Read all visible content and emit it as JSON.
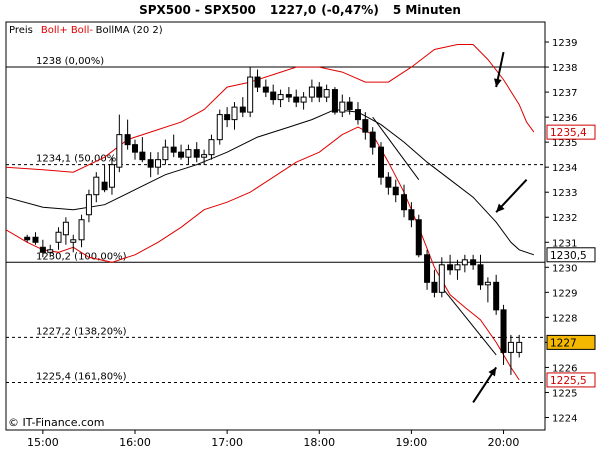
{
  "chart_data": {
    "type": "candlestick",
    "title": "SPX500 - SPX500",
    "last_price": "1227,0",
    "change": "(-0,47%)",
    "interval": "5 Minuten",
    "legend": {
      "price_label": "Preis",
      "indicator_upper": "Boll+",
      "indicator_lower": "Boll-",
      "indicator_ma": "BollMA",
      "indicator_params": "(20 2)"
    },
    "copyright": "© IT-Finance.com",
    "colors": {
      "bollinger_bands": "#e00000",
      "moving_average": "#000000",
      "down_candle": "#000000",
      "up_candle": "#ffffff",
      "last_price_tag": "#f5b800",
      "band_tag_text": "#d00000"
    },
    "y_range": [
      1223.5,
      1239.8
    ],
    "y_ticks": [
      1224,
      1225,
      1226,
      1227,
      1228,
      1229,
      1230,
      1231,
      1232,
      1233,
      1234,
      1235,
      1236,
      1237,
      1238,
      1239
    ],
    "x_range": [
      14.6,
      20.45
    ],
    "x_ticks": [
      {
        "t": 15.0,
        "label": "15:00"
      },
      {
        "t": 16.0,
        "label": "16:00"
      },
      {
        "t": 17.0,
        "label": "17:00"
      },
      {
        "t": 18.0,
        "label": "18:00"
      },
      {
        "t": 19.0,
        "label": "19:00"
      },
      {
        "t": 20.0,
        "label": "20:00"
      }
    ],
    "right_tags": [
      {
        "value": 1235.4,
        "label": "1235,4",
        "style": "red"
      },
      {
        "value": 1230.5,
        "label": "1230,5",
        "style": "black"
      },
      {
        "value": 1227.0,
        "label": "1227",
        "style": "highlight"
      },
      {
        "value": 1225.5,
        "label": "1225,5",
        "style": "red"
      }
    ],
    "fib_levels": [
      {
        "value": 1238.0,
        "label": "1238 (0,00%)",
        "line": "solid"
      },
      {
        "value": 1234.1,
        "label": "1234,1 (50,00%)",
        "line": "dashed"
      },
      {
        "value": 1230.2,
        "label": "1230,2 (100,00%)",
        "line": "solid"
      },
      {
        "value": 1227.2,
        "label": "1227,2 (138,20%)",
        "line": "dashed"
      },
      {
        "value": 1225.4,
        "label": "1225,4 (161,80%)",
        "line": "dashed"
      }
    ],
    "candles": [
      {
        "t": 14.83,
        "o": 1231.2,
        "h": 1231.3,
        "l": 1231.0,
        "c": 1231.1
      },
      {
        "t": 14.92,
        "o": 1231.2,
        "h": 1231.4,
        "l": 1230.9,
        "c": 1231.0
      },
      {
        "t": 15.0,
        "o": 1230.8,
        "h": 1231.1,
        "l": 1230.4,
        "c": 1230.6
      },
      {
        "t": 15.08,
        "o": 1230.6,
        "h": 1230.9,
        "l": 1230.4,
        "c": 1230.7
      },
      {
        "t": 15.17,
        "o": 1231.0,
        "h": 1231.6,
        "l": 1230.7,
        "c": 1231.4
      },
      {
        "t": 15.25,
        "o": 1231.3,
        "h": 1232.0,
        "l": 1230.9,
        "c": 1231.8
      },
      {
        "t": 15.33,
        "o": 1231.0,
        "h": 1231.3,
        "l": 1230.6,
        "c": 1231.1
      },
      {
        "t": 15.42,
        "o": 1231.1,
        "h": 1232.1,
        "l": 1230.8,
        "c": 1231.9
      },
      {
        "t": 15.5,
        "o": 1232.1,
        "h": 1233.1,
        "l": 1231.8,
        "c": 1232.9
      },
      {
        "t": 15.58,
        "o": 1232.9,
        "h": 1233.8,
        "l": 1232.6,
        "c": 1233.6
      },
      {
        "t": 15.67,
        "o": 1233.4,
        "h": 1234.1,
        "l": 1233.0,
        "c": 1233.1
      },
      {
        "t": 15.75,
        "o": 1233.2,
        "h": 1234.4,
        "l": 1232.9,
        "c": 1234.1
      },
      {
        "t": 15.83,
        "o": 1234.0,
        "h": 1236.1,
        "l": 1233.8,
        "c": 1235.3
      },
      {
        "t": 15.92,
        "o": 1235.3,
        "h": 1235.9,
        "l": 1234.7,
        "c": 1234.9
      },
      {
        "t": 16.0,
        "o": 1234.9,
        "h": 1235.1,
        "l": 1234.3,
        "c": 1234.6
      },
      {
        "t": 16.08,
        "o": 1234.6,
        "h": 1235.2,
        "l": 1234.2,
        "c": 1234.3
      },
      {
        "t": 16.17,
        "o": 1234.3,
        "h": 1234.6,
        "l": 1233.6,
        "c": 1234.0
      },
      {
        "t": 16.25,
        "o": 1234.0,
        "h": 1234.6,
        "l": 1233.7,
        "c": 1234.3
      },
      {
        "t": 16.33,
        "o": 1234.3,
        "h": 1235.1,
        "l": 1234.1,
        "c": 1234.8
      },
      {
        "t": 16.42,
        "o": 1234.8,
        "h": 1235.3,
        "l": 1234.4,
        "c": 1234.6
      },
      {
        "t": 16.5,
        "o": 1234.6,
        "h": 1234.9,
        "l": 1234.3,
        "c": 1234.4
      },
      {
        "t": 16.58,
        "o": 1234.4,
        "h": 1234.9,
        "l": 1234.1,
        "c": 1234.7
      },
      {
        "t": 16.67,
        "o": 1234.7,
        "h": 1235.0,
        "l": 1234.2,
        "c": 1234.4
      },
      {
        "t": 16.75,
        "o": 1234.4,
        "h": 1234.7,
        "l": 1234.1,
        "c": 1234.5
      },
      {
        "t": 16.83,
        "o": 1234.5,
        "h": 1235.3,
        "l": 1234.3,
        "c": 1235.1
      },
      {
        "t": 16.92,
        "o": 1235.1,
        "h": 1236.3,
        "l": 1234.9,
        "c": 1236.1
      },
      {
        "t": 17.0,
        "o": 1236.1,
        "h": 1236.4,
        "l": 1235.6,
        "c": 1235.9
      },
      {
        "t": 17.08,
        "o": 1235.9,
        "h": 1236.6,
        "l": 1235.5,
        "c": 1236.4
      },
      {
        "t": 17.17,
        "o": 1236.4,
        "h": 1236.8,
        "l": 1236.0,
        "c": 1236.2
      },
      {
        "t": 17.25,
        "o": 1236.2,
        "h": 1238.0,
        "l": 1236.0,
        "c": 1237.6
      },
      {
        "t": 17.33,
        "o": 1237.6,
        "h": 1237.9,
        "l": 1237.0,
        "c": 1237.2
      },
      {
        "t": 17.42,
        "o": 1237.2,
        "h": 1237.5,
        "l": 1236.8,
        "c": 1237.0
      },
      {
        "t": 17.5,
        "o": 1237.0,
        "h": 1237.3,
        "l": 1236.5,
        "c": 1236.7
      },
      {
        "t": 17.58,
        "o": 1236.7,
        "h": 1237.1,
        "l": 1236.4,
        "c": 1236.9
      },
      {
        "t": 17.67,
        "o": 1236.9,
        "h": 1237.2,
        "l": 1236.6,
        "c": 1236.8
      },
      {
        "t": 17.75,
        "o": 1236.8,
        "h": 1237.1,
        "l": 1236.4,
        "c": 1236.6
      },
      {
        "t": 17.83,
        "o": 1236.6,
        "h": 1237.0,
        "l": 1236.3,
        "c": 1236.8
      },
      {
        "t": 17.92,
        "o": 1236.8,
        "h": 1237.5,
        "l": 1236.6,
        "c": 1237.2
      },
      {
        "t": 18.0,
        "o": 1237.2,
        "h": 1237.4,
        "l": 1236.6,
        "c": 1236.8
      },
      {
        "t": 18.08,
        "o": 1236.8,
        "h": 1237.3,
        "l": 1236.6,
        "c": 1237.1
      },
      {
        "t": 18.17,
        "o": 1237.1,
        "h": 1237.2,
        "l": 1236.1,
        "c": 1236.2
      },
      {
        "t": 18.25,
        "o": 1236.2,
        "h": 1236.9,
        "l": 1236.0,
        "c": 1236.6
      },
      {
        "t": 18.33,
        "o": 1236.6,
        "h": 1236.8,
        "l": 1236.1,
        "c": 1236.3
      },
      {
        "t": 18.42,
        "o": 1236.3,
        "h": 1236.6,
        "l": 1235.7,
        "c": 1235.9
      },
      {
        "t": 18.5,
        "o": 1235.9,
        "h": 1236.2,
        "l": 1235.1,
        "c": 1235.4
      },
      {
        "t": 18.58,
        "o": 1235.4,
        "h": 1235.6,
        "l": 1234.5,
        "c": 1234.8
      },
      {
        "t": 18.67,
        "o": 1234.8,
        "h": 1235.0,
        "l": 1233.3,
        "c": 1233.6
      },
      {
        "t": 18.75,
        "o": 1233.6,
        "h": 1233.8,
        "l": 1232.9,
        "c": 1233.2
      },
      {
        "t": 18.83,
        "o": 1233.2,
        "h": 1233.5,
        "l": 1232.6,
        "c": 1232.9
      },
      {
        "t": 18.92,
        "o": 1232.9,
        "h": 1233.3,
        "l": 1232.0,
        "c": 1232.3
      },
      {
        "t": 19.0,
        "o": 1232.3,
        "h": 1232.6,
        "l": 1231.6,
        "c": 1231.9
      },
      {
        "t": 19.08,
        "o": 1231.9,
        "h": 1232.1,
        "l": 1230.4,
        "c": 1230.5
      },
      {
        "t": 19.17,
        "o": 1230.5,
        "h": 1230.7,
        "l": 1229.1,
        "c": 1229.4
      },
      {
        "t": 19.25,
        "o": 1229.4,
        "h": 1229.9,
        "l": 1228.8,
        "c": 1229.0
      },
      {
        "t": 19.33,
        "o": 1229.0,
        "h": 1230.4,
        "l": 1228.8,
        "c": 1230.1
      },
      {
        "t": 19.42,
        "o": 1230.1,
        "h": 1230.5,
        "l": 1229.7,
        "c": 1229.9
      },
      {
        "t": 19.5,
        "o": 1229.9,
        "h": 1230.3,
        "l": 1229.5,
        "c": 1230.1
      },
      {
        "t": 19.58,
        "o": 1230.1,
        "h": 1230.5,
        "l": 1229.8,
        "c": 1230.3
      },
      {
        "t": 19.67,
        "o": 1230.3,
        "h": 1230.5,
        "l": 1229.9,
        "c": 1230.1
      },
      {
        "t": 19.75,
        "o": 1230.1,
        "h": 1230.5,
        "l": 1229.1,
        "c": 1229.3
      },
      {
        "t": 19.83,
        "o": 1229.3,
        "h": 1229.6,
        "l": 1228.6,
        "c": 1229.4
      },
      {
        "t": 19.92,
        "o": 1229.4,
        "h": 1229.7,
        "l": 1228.1,
        "c": 1228.3
      },
      {
        "t": 20.0,
        "o": 1228.3,
        "h": 1228.5,
        "l": 1226.1,
        "c": 1226.6
      },
      {
        "t": 20.08,
        "o": 1226.6,
        "h": 1227.3,
        "l": 1225.7,
        "c": 1227.0
      },
      {
        "t": 20.17,
        "o": 1226.6,
        "h": 1227.3,
        "l": 1226.4,
        "c": 1227.0
      }
    ],
    "boll_upper": [
      [
        14.6,
        1234.0
      ],
      [
        15.0,
        1233.9
      ],
      [
        15.33,
        1233.8
      ],
      [
        15.67,
        1234.4
      ],
      [
        15.92,
        1235.1
      ],
      [
        16.25,
        1235.5
      ],
      [
        16.5,
        1235.8
      ],
      [
        16.75,
        1236.3
      ],
      [
        17.0,
        1237.2
      ],
      [
        17.25,
        1237.4
      ],
      [
        17.5,
        1237.7
      ],
      [
        17.75,
        1238.0
      ],
      [
        18.0,
        1238.0
      ],
      [
        18.25,
        1237.8
      ],
      [
        18.5,
        1237.4
      ],
      [
        18.75,
        1237.4
      ],
      [
        19.0,
        1238.0
      ],
      [
        19.25,
        1238.7
      ],
      [
        19.5,
        1238.9
      ],
      [
        19.67,
        1238.9
      ],
      [
        19.83,
        1238.3
      ],
      [
        20.0,
        1237.5
      ],
      [
        20.17,
        1236.5
      ],
      [
        20.25,
        1235.8
      ],
      [
        20.33,
        1235.4
      ]
    ],
    "boll_lower": [
      [
        14.6,
        1231.5
      ],
      [
        14.83,
        1231.0
      ],
      [
        15.0,
        1230.7
      ],
      [
        15.17,
        1230.6
      ],
      [
        15.33,
        1230.8
      ],
      [
        15.5,
        1230.4
      ],
      [
        15.75,
        1230.2
      ],
      [
        16.0,
        1230.5
      ],
      [
        16.25,
        1231.0
      ],
      [
        16.5,
        1231.6
      ],
      [
        16.75,
        1232.3
      ],
      [
        17.0,
        1232.6
      ],
      [
        17.25,
        1233.0
      ],
      [
        17.5,
        1233.6
      ],
      [
        17.75,
        1234.2
      ],
      [
        18.0,
        1234.6
      ],
      [
        18.25,
        1235.3
      ],
      [
        18.42,
        1235.6
      ],
      [
        18.58,
        1235.3
      ],
      [
        18.75,
        1234.2
      ],
      [
        18.92,
        1233.0
      ],
      [
        19.08,
        1231.6
      ],
      [
        19.25,
        1230.0
      ],
      [
        19.42,
        1228.9
      ],
      [
        19.58,
        1228.4
      ],
      [
        19.75,
        1227.9
      ],
      [
        19.92,
        1227.0
      ],
      [
        20.08,
        1226.0
      ],
      [
        20.17,
        1225.5
      ]
    ],
    "boll_ma": [
      [
        14.6,
        1232.8
      ],
      [
        15.0,
        1232.4
      ],
      [
        15.33,
        1232.3
      ],
      [
        15.67,
        1232.5
      ],
      [
        16.0,
        1233.1
      ],
      [
        16.33,
        1233.7
      ],
      [
        16.67,
        1234.1
      ],
      [
        17.0,
        1234.6
      ],
      [
        17.33,
        1235.2
      ],
      [
        17.67,
        1235.6
      ],
      [
        17.92,
        1235.9
      ],
      [
        18.17,
        1236.3
      ],
      [
        18.42,
        1236.2
      ],
      [
        18.67,
        1235.7
      ],
      [
        18.92,
        1235.0
      ],
      [
        19.17,
        1234.2
      ],
      [
        19.42,
        1233.5
      ],
      [
        19.67,
        1232.8
      ],
      [
        19.92,
        1231.8
      ],
      [
        20.08,
        1231.0
      ],
      [
        20.17,
        1230.7
      ],
      [
        20.33,
        1230.5
      ]
    ],
    "trend_lines": [
      [
        [
          18.58,
          1236.0
        ],
        [
          19.08,
          1233.5
        ]
      ],
      [
        [
          19.33,
          1229.2
        ],
        [
          19.92,
          1226.5
        ]
      ]
    ],
    "arrows": [
      [
        [
          20.0,
          1238.6
        ],
        [
          19.92,
          1237.2
        ]
      ],
      [
        [
          20.25,
          1233.5
        ],
        [
          19.92,
          1232.2
        ]
      ],
      [
        [
          19.67,
          1224.6
        ],
        [
          19.92,
          1226.0
        ]
      ]
    ]
  }
}
